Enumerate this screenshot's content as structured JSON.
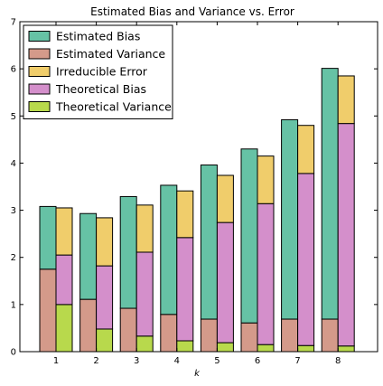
{
  "chart_data": {
    "type": "bar",
    "title": "Estimated Bias and Variance vs. Error",
    "xlabel": "k",
    "ylabel": "",
    "categories": [
      "1",
      "2",
      "3",
      "4",
      "5",
      "6",
      "7",
      "8"
    ],
    "ylim": [
      0,
      7
    ],
    "yticks": [
      "0",
      "1",
      "2",
      "3",
      "4",
      "5",
      "6",
      "7"
    ],
    "grid": false,
    "legend_position": "top-left",
    "stacks": [
      {
        "group": "estimated",
        "series": [
          {
            "name": "Estimated Variance",
            "color": "#d49a8a",
            "values": [
              1.75,
              1.11,
              0.92,
              0.79,
              0.69,
              0.61,
              0.69,
              0.69
            ]
          },
          {
            "name": "Estimated Bias",
            "color": "#66c2a5",
            "values": [
              1.33,
              1.82,
              2.37,
              2.74,
              3.27,
              3.69,
              4.23,
              5.32
            ]
          }
        ]
      },
      {
        "group": "theoretical",
        "series": [
          {
            "name": "Theoretical Variance",
            "color": "#b8d94c",
            "values": [
              1.0,
              0.48,
              0.33,
              0.23,
              0.19,
              0.15,
              0.13,
              0.12
            ]
          },
          {
            "name": "Theoretical Bias",
            "color": "#d48fcb",
            "values": [
              1.05,
              1.34,
              1.78,
              2.19,
              2.55,
              2.99,
              3.65,
              4.72
            ]
          },
          {
            "name": "Irreducible Error",
            "color": "#f0cd6b",
            "values": [
              1.0,
              1.02,
              1.0,
              0.99,
              1.0,
              1.01,
              1.02,
              1.01
            ]
          }
        ]
      }
    ],
    "legend": [
      {
        "name": "Estimated Bias",
        "color": "#66c2a5"
      },
      {
        "name": "Estimated Variance",
        "color": "#d49a8a"
      },
      {
        "name": "Irreducible Error",
        "color": "#f0cd6b"
      },
      {
        "name": "Theoretical Bias",
        "color": "#d48fcb"
      },
      {
        "name": "Theoretical Variance",
        "color": "#b8d94c"
      }
    ]
  }
}
